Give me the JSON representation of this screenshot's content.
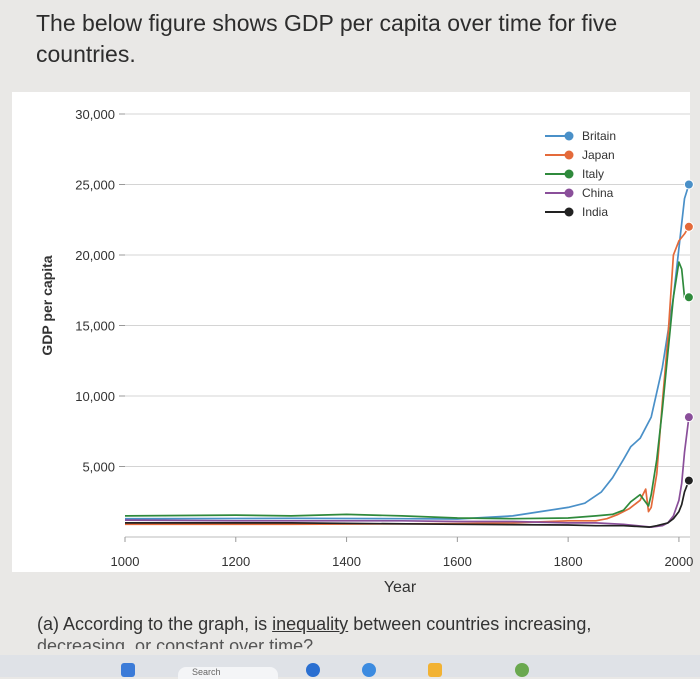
{
  "question": {
    "title": "The below figure shows GDP per capita over time for five countries.",
    "part_a_prefix": "(a) According to the graph, is ",
    "part_a_link": "inequality",
    "part_a_suffix": " between countries increasing, ",
    "part_a_cut": "decreasing, or constant over time?"
  },
  "taskbar": {
    "search_label": "Search"
  },
  "chart_data": {
    "type": "line",
    "xlabel": "Year",
    "ylabel": "GDP per capita",
    "xlim": [
      1000,
      2020
    ],
    "ylim": [
      0,
      30000
    ],
    "xticks": [
      1000,
      1200,
      1400,
      1600,
      1800,
      2000
    ],
    "xtick_labels": [
      "1000",
      "1200",
      "1400",
      "1600",
      "1800",
      "2000"
    ],
    "yticks": [
      5000,
      10000,
      15000,
      20000,
      25000,
      30000
    ],
    "ytick_labels": [
      "5,000",
      "10,000",
      "15,000",
      "20,000",
      "25,000",
      "30,000"
    ],
    "grid": "horizontal",
    "legend_position": "top-right",
    "series": [
      {
        "name": "Britain",
        "color": "#4a90c8",
        "x": [
          1000,
          1300,
          1500,
          1600,
          1700,
          1750,
          1800,
          1830,
          1860,
          1880,
          1900,
          1913,
          1930,
          1950,
          1970,
          1990,
          2010,
          2018
        ],
        "y": [
          1300,
          1320,
          1300,
          1280,
          1500,
          1800,
          2100,
          2400,
          3200,
          4200,
          5500,
          6400,
          7000,
          8500,
          12000,
          17000,
          24000,
          25000
        ]
      },
      {
        "name": "Japan",
        "color": "#e46a3a",
        "x": [
          1000,
          1300,
          1600,
          1700,
          1800,
          1850,
          1870,
          1890,
          1910,
          1930,
          1940,
          1945,
          1950,
          1960,
          1970,
          1980,
          1990,
          2000,
          2010,
          2018
        ],
        "y": [
          900,
          900,
          950,
          1000,
          1150,
          1150,
          1300,
          1600,
          2000,
          2600,
          3400,
          1800,
          2100,
          4500,
          9500,
          14000,
          20000,
          21000,
          21500,
          22000
        ]
      },
      {
        "name": "Italy",
        "color": "#2f8a3c",
        "x": [
          1000,
          1200,
          1300,
          1400,
          1500,
          1600,
          1700,
          1800,
          1850,
          1880,
          1900,
          1913,
          1930,
          1945,
          1950,
          1960,
          1970,
          1980,
          1990,
          2000,
          2005,
          2010,
          2018
        ],
        "y": [
          1500,
          1550,
          1500,
          1600,
          1500,
          1350,
          1300,
          1350,
          1500,
          1600,
          1900,
          2500,
          3000,
          2200,
          3000,
          5500,
          9000,
          13000,
          17000,
          19500,
          19000,
          17000,
          17000
        ]
      },
      {
        "name": "China",
        "color": "#8a4f9a",
        "x": [
          1000,
          1200,
          1400,
          1500,
          1600,
          1700,
          1800,
          1850,
          1900,
          1950,
          1970,
          1980,
          1990,
          2000,
          2005,
          2010,
          2018
        ],
        "y": [
          1200,
          1150,
          1150,
          1150,
          1100,
          1100,
          1000,
          1000,
          900,
          700,
          800,
          1000,
          1500,
          2600,
          3800,
          6000,
          8500
        ]
      },
      {
        "name": "India",
        "color": "#222222",
        "x": [
          1000,
          1300,
          1600,
          1800,
          1850,
          1900,
          1947,
          1960,
          1970,
          1980,
          1990,
          2000,
          2005,
          2010,
          2018
        ],
        "y": [
          1000,
          1000,
          900,
          850,
          800,
          800,
          700,
          800,
          900,
          1000,
          1300,
          1800,
          2300,
          3200,
          4000
        ]
      }
    ]
  }
}
